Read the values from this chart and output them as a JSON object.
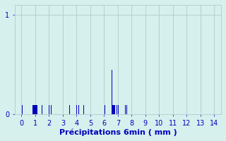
{
  "title": "",
  "xlabel": "Précipitations 6min ( mm )",
  "ylabel": "",
  "xlim": [
    -0.5,
    14.5
  ],
  "ylim": [
    0,
    1.1
  ],
  "yticks": [
    0,
    1
  ],
  "xticks": [
    0,
    1,
    2,
    3,
    4,
    5,
    6,
    7,
    8,
    9,
    10,
    11,
    12,
    13,
    14
  ],
  "bar_color": "#0000bb",
  "bg_color": "#d6f0ee",
  "grid_color": "#b8cece",
  "bar_positions": [
    0.05,
    0.85,
    0.95,
    1.05,
    1.15,
    1.5,
    2.0,
    2.15,
    3.5,
    4.0,
    4.15,
    4.5,
    6.05,
    6.55,
    6.65,
    6.75,
    6.95,
    7.05,
    7.55,
    7.65
  ],
  "bar_heights": [
    0.09,
    0.09,
    0.09,
    0.09,
    0.09,
    0.09,
    0.09,
    0.09,
    0.09,
    0.09,
    0.09,
    0.09,
    0.09,
    0.45,
    0.09,
    0.09,
    0.09,
    0.09,
    0.09,
    0.09
  ],
  "bar_width": 0.06,
  "tick_fontsize": 7,
  "label_fontsize": 8
}
